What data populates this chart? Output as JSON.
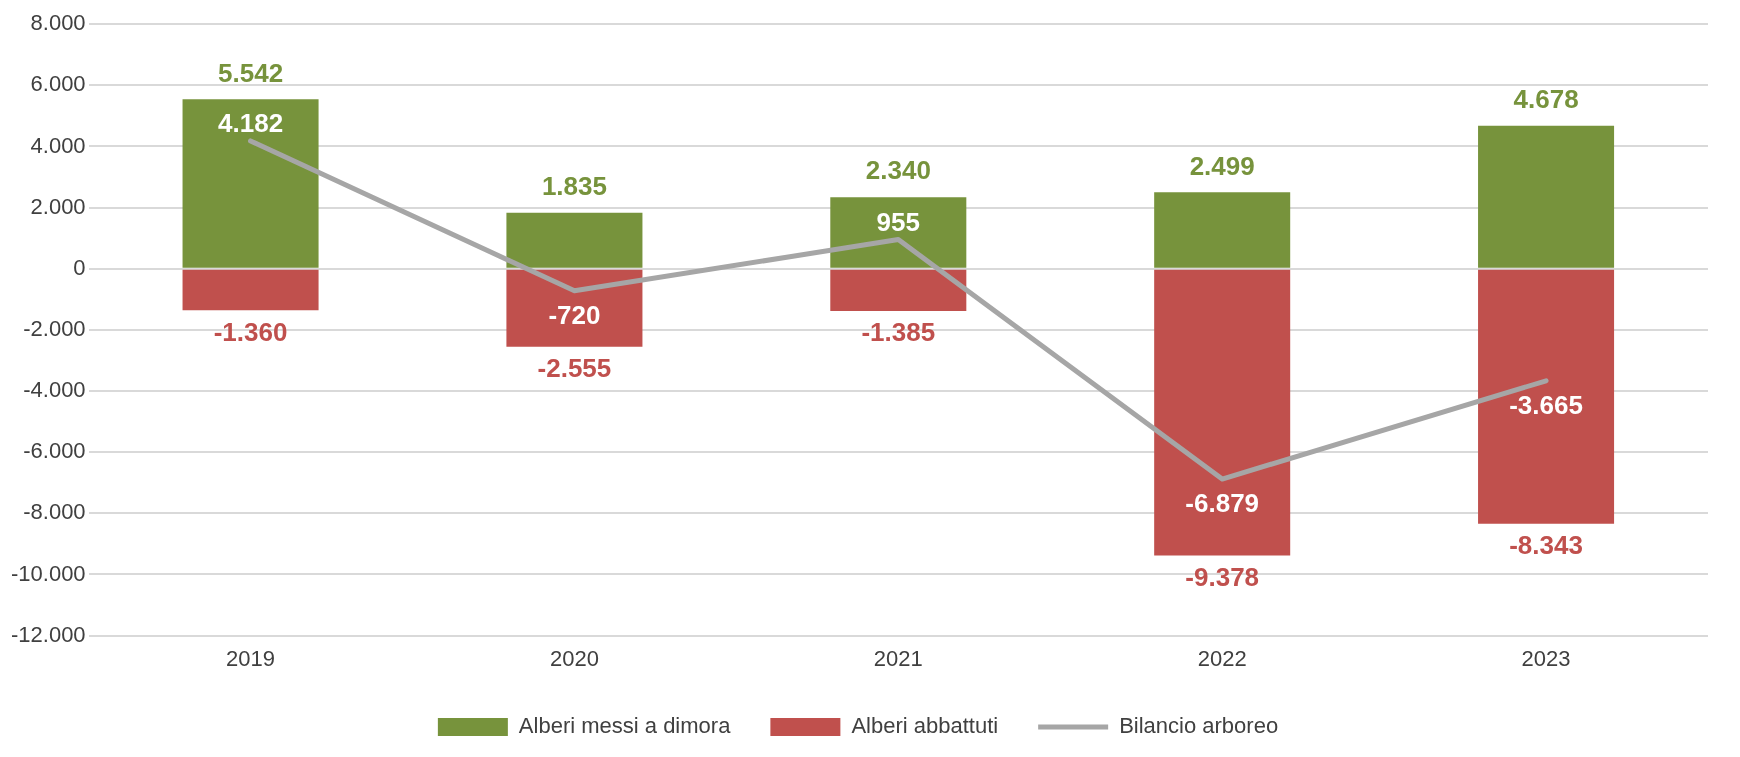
{
  "chart_data": {
    "type": "bar",
    "stacked": true,
    "categories": [
      "2019",
      "2020",
      "2021",
      "2022",
      "2023"
    ],
    "series": [
      {
        "name": "Alberi messi a dimora",
        "color": "#77933c",
        "values": [
          5542,
          1835,
          2340,
          2499,
          4678
        ],
        "value_labels": [
          "5.542",
          "1.835",
          "2.340",
          "2.499",
          "4.678"
        ]
      },
      {
        "name": "Alberi abbattuti",
        "color": "#c0504d",
        "values": [
          -1360,
          -2555,
          -1385,
          -9378,
          -8343
        ],
        "value_labels": [
          "-1.360",
          "-2.555",
          "-1.385",
          "-9.378",
          "-8.343"
        ]
      },
      {
        "name": "Bilancio arboreo",
        "type": "line",
        "color": "#a6a6a6",
        "values": [
          4182,
          -720,
          955,
          -6879,
          -3665
        ],
        "value_labels": [
          "4.182",
          "-720",
          "955",
          "-6.879",
          "-3.665"
        ]
      }
    ],
    "ylim": [
      -12000,
      8000
    ],
    "yticks": [
      {
        "value": -12000,
        "label": "-12.000"
      },
      {
        "value": -10000,
        "label": "-10.000"
      },
      {
        "value": -8000,
        "label": "-8.000"
      },
      {
        "value": -6000,
        "label": "-6.000"
      },
      {
        "value": -4000,
        "label": "-4.000"
      },
      {
        "value": -2000,
        "label": "-2.000"
      },
      0,
      {
        "value": 2000,
        "label": "2.000"
      },
      {
        "value": 4000,
        "label": "4.000"
      },
      {
        "value": 6000,
        "label": "6.000"
      },
      {
        "value": 8000,
        "label": "8.000"
      }
    ],
    "grid": "y",
    "legend": "bottom",
    "marker": "none",
    "line_style": "solid"
  }
}
